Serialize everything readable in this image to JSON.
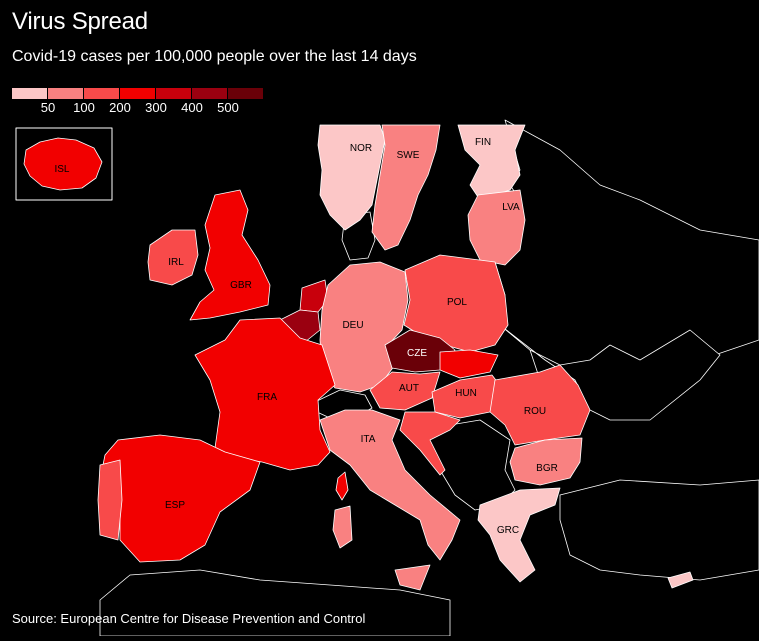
{
  "title": "Virus Spread",
  "subtitle": "Covid-19 cases per 100,000 people over the last 14 days",
  "source": "Source: European Centre for Disease Prevention and Control",
  "legend": {
    "colors": [
      "#fcc7c7",
      "#f98181",
      "#f84a4a",
      "#f20000",
      "#c8000c",
      "#9a0010",
      "#6a0008"
    ],
    "ticks": [
      "50",
      "100",
      "200",
      "300",
      "400",
      "500"
    ]
  },
  "colors": {
    "background": "#000000",
    "border": "#ffffff"
  },
  "countries": [
    {
      "code": "ISL",
      "color": "#f20000"
    },
    {
      "code": "NOR",
      "color": "#fcc7c7"
    },
    {
      "code": "SWE",
      "color": "#f98181"
    },
    {
      "code": "FIN",
      "color": "#fcc7c7"
    },
    {
      "code": "LVA",
      "color": "#f98181"
    },
    {
      "code": "IRL",
      "color": "#f84a4a"
    },
    {
      "code": "GBR",
      "color": "#f20000"
    },
    {
      "code": "DEU",
      "color": "#f98181"
    },
    {
      "code": "POL",
      "color": "#f84a4a"
    },
    {
      "code": "CZE",
      "color": "#6a0008"
    },
    {
      "code": "AUT",
      "color": "#f84a4a"
    },
    {
      "code": "HUN",
      "color": "#f84a4a"
    },
    {
      "code": "ROU",
      "color": "#f84a4a"
    },
    {
      "code": "FRA",
      "color": "#f20000"
    },
    {
      "code": "ITA",
      "color": "#f98181"
    },
    {
      "code": "BGR",
      "color": "#f98181"
    },
    {
      "code": "ESP",
      "color": "#f20000"
    },
    {
      "code": "GRC",
      "color": "#fcc7c7"
    }
  ]
}
